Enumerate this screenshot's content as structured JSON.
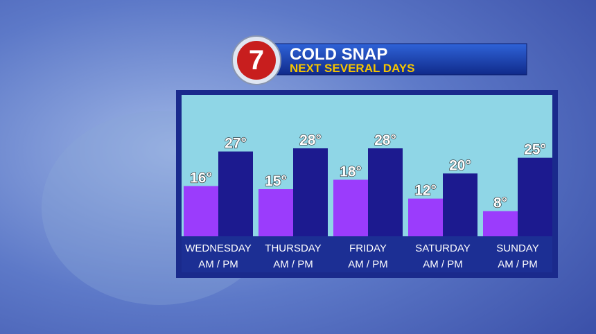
{
  "chart_data": {
    "type": "bar",
    "title": "COLD SNAP",
    "subtitle": "NEXT SEVERAL DAYS",
    "logo": "7",
    "categories": [
      "WEDNESDAY",
      "THURSDAY",
      "FRIDAY",
      "SATURDAY",
      "SUNDAY"
    ],
    "category_sublabels": [
      "AM / PM",
      "AM / PM",
      "AM / PM",
      "AM / PM",
      "AM / PM"
    ],
    "series": [
      {
        "color": "#9b3cfc",
        "values": [
          16,
          15,
          18,
          12,
          8
        ],
        "value_labels": [
          "16°",
          "15°",
          "18°",
          "12°",
          "8°"
        ]
      },
      {
        "color": "#1c1a8f",
        "values": [
          27,
          28,
          28,
          20,
          25
        ],
        "value_labels": [
          "27°",
          "28°",
          "28°",
          "20°",
          "25°"
        ]
      }
    ],
    "ylim": [
      0,
      45
    ]
  }
}
